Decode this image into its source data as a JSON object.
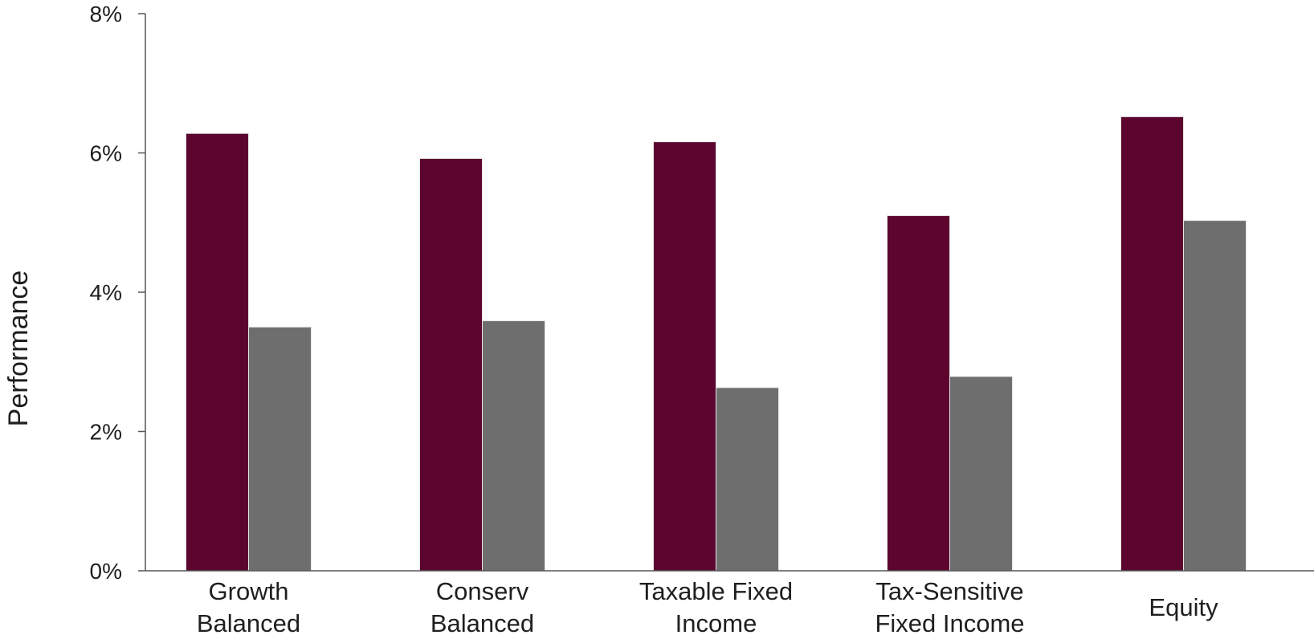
{
  "chart_data": {
    "type": "bar",
    "title": "",
    "xlabel": "",
    "ylabel": "Performance",
    "ylim": [
      0,
      8
    ],
    "y_unit": "%",
    "y_ticks": [
      0,
      2,
      4,
      6,
      8
    ],
    "y_tick_labels": [
      "0%",
      "2%",
      "4%",
      "6%",
      "8%"
    ],
    "categories": [
      "Growth Balanced",
      "Conserv Balanced",
      "Taxable Fixed Income",
      "Tax-Sensitive Fixed Income",
      "Equity"
    ],
    "category_label_lines": [
      [
        "Growth",
        "Balanced"
      ],
      [
        "Conserv",
        "Balanced"
      ],
      [
        "Taxable Fixed",
        "Income"
      ],
      [
        "Tax-Sensitive",
        "Fixed Income"
      ],
      [
        "Equity"
      ]
    ],
    "series": [
      {
        "values": [
          6.28,
          5.92,
          6.16,
          5.1,
          6.52
        ],
        "color": "#5c052e"
      },
      {
        "values": [
          3.5,
          3.59,
          2.63,
          2.79,
          5.03
        ],
        "color": "#6e6e6e"
      }
    ],
    "grid": false,
    "legend": "none"
  }
}
